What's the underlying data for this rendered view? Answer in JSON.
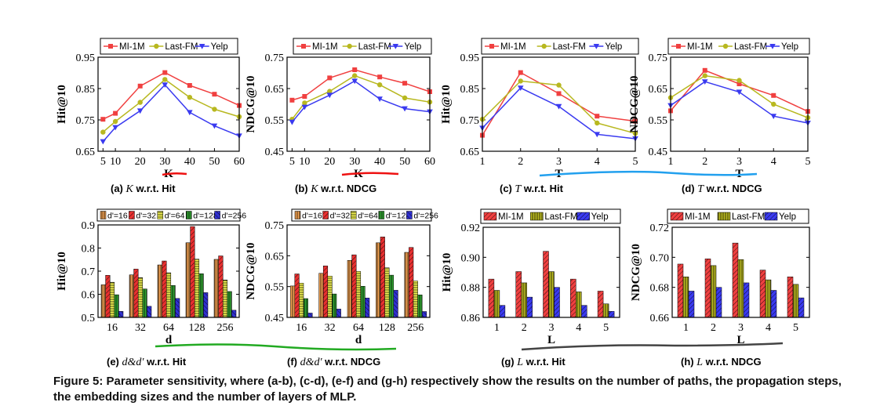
{
  "figure_caption": "Figure 5: Parameter sensitivity, where (a-b), (c-d), (e-f) and (g-h) respectively show the results on the number of paths, the propagation steps, the embedding sizes and the number of layers of MLP.",
  "colors": {
    "mi": "#f04040",
    "lastfm": "#b8b820",
    "yelp": "#3a3af0",
    "d16": "#f0a050",
    "d32": "#e83030",
    "d64": "#f0f050",
    "d128": "#30a030",
    "d256": "#3030d0",
    "underline_red": "#ee1111",
    "underline_blue": "#22a0ee",
    "underline_green": "#22aa22",
    "underline_black": "#444444"
  },
  "chart_data": [
    {
      "id": "a",
      "type": "line",
      "caption_label": "(a)",
      "caption_var": "K",
      "caption_rest": " w.r.t. Hit",
      "xlabel": "K",
      "ylabel": "Hit@10",
      "x": [
        5,
        10,
        20,
        30,
        40,
        50,
        60
      ],
      "xticks": [
        "5",
        "10",
        "20",
        "30",
        "40",
        "50",
        "60"
      ],
      "xlim": [
        3,
        60
      ],
      "ylim": [
        0.65,
        0.95
      ],
      "yticks": [
        "0.65",
        "0.75",
        "0.85",
        "0.95"
      ],
      "legend": [
        "MI-1M",
        "Last-FM",
        "Yelp"
      ],
      "series": [
        {
          "name": "MI-1M",
          "values": [
            0.752,
            0.771,
            0.858,
            0.901,
            0.86,
            0.832,
            0.796
          ]
        },
        {
          "name": "Last-FM",
          "values": [
            0.711,
            0.745,
            0.806,
            0.879,
            0.822,
            0.784,
            0.76
          ]
        },
        {
          "name": "Yelp",
          "values": [
            0.681,
            0.726,
            0.779,
            0.862,
            0.774,
            0.731,
            0.699
          ]
        }
      ]
    },
    {
      "id": "b",
      "type": "line",
      "caption_label": "(b)",
      "caption_var": "K",
      "caption_rest": " w.r.t. NDCG",
      "xlabel": "K",
      "ylabel": "NDCG@10",
      "x": [
        5,
        10,
        20,
        30,
        40,
        50,
        60
      ],
      "xticks": [
        "5",
        "10",
        "20",
        "30",
        "40",
        "50",
        "60"
      ],
      "xlim": [
        3,
        60
      ],
      "ylim": [
        0.45,
        0.75
      ],
      "yticks": [
        "0.45",
        "0.55",
        "0.65",
        "0.75"
      ],
      "legend": [
        "MI-1M",
        "Last-FM",
        "Yelp"
      ],
      "series": [
        {
          "name": "MI-1M",
          "values": [
            0.613,
            0.625,
            0.684,
            0.71,
            0.687,
            0.667,
            0.64
          ]
        },
        {
          "name": "Last-FM",
          "values": [
            0.552,
            0.604,
            0.641,
            0.691,
            0.662,
            0.62,
            0.607
          ]
        },
        {
          "name": "Yelp",
          "values": [
            0.543,
            0.591,
            0.629,
            0.674,
            0.617,
            0.586,
            0.576
          ]
        }
      ]
    },
    {
      "id": "c",
      "type": "line",
      "caption_label": "(c)",
      "caption_var": "T",
      "caption_rest": " w.r.t. Hit",
      "xlabel": "T",
      "ylabel": "Hit@10",
      "x": [
        1,
        2,
        3,
        4,
        5
      ],
      "xticks": [
        "1",
        "2",
        "3",
        "4",
        "5"
      ],
      "xlim": [
        1,
        5
      ],
      "ylim": [
        0.65,
        0.95
      ],
      "yticks": [
        "0.65",
        "0.75",
        "0.85",
        "0.95"
      ],
      "legend": [
        "MI-1M",
        "Last-FM",
        "Yelp"
      ],
      "series": [
        {
          "name": "MI-1M",
          "values": [
            0.701,
            0.901,
            0.834,
            0.762,
            0.746
          ]
        },
        {
          "name": "Last-FM",
          "values": [
            0.752,
            0.874,
            0.861,
            0.74,
            0.707
          ]
        },
        {
          "name": "Yelp",
          "values": [
            0.724,
            0.852,
            0.793,
            0.704,
            0.69
          ]
        }
      ]
    },
    {
      "id": "d",
      "type": "line",
      "caption_label": "(d)",
      "caption_var": "T",
      "caption_rest": " w.r.t. NDCG",
      "xlabel": "T",
      "ylabel": "NDCG@10",
      "x": [
        1,
        2,
        3,
        4,
        5
      ],
      "xticks": [
        "1",
        "2",
        "3",
        "4",
        "5"
      ],
      "xlim": [
        1,
        5
      ],
      "ylim": [
        0.45,
        0.75
      ],
      "yticks": [
        "0.45",
        "0.55",
        "0.65",
        "0.75"
      ],
      "legend": [
        "MI-1M",
        "Last-FM",
        "Yelp"
      ],
      "series": [
        {
          "name": "MI-1M",
          "values": [
            0.579,
            0.708,
            0.665,
            0.628,
            0.577
          ]
        },
        {
          "name": "Last-FM",
          "values": [
            0.621,
            0.691,
            0.676,
            0.6,
            0.557
          ]
        },
        {
          "name": "Yelp",
          "values": [
            0.596,
            0.672,
            0.639,
            0.562,
            0.54
          ]
        }
      ]
    },
    {
      "id": "e",
      "type": "bar",
      "caption_label": "(e)",
      "caption_var": "d&d′",
      "caption_rest": " w.r.t. Hit",
      "xlabel": "d",
      "ylabel": "Hit@10",
      "categories": [
        "16",
        "32",
        "64",
        "128",
        "256"
      ],
      "ylim": [
        0.5,
        0.9
      ],
      "yticks": [
        "0.5",
        "0.6",
        "0.7",
        "0.8",
        "0.9"
      ],
      "legend": [
        "d'=16",
        "d'=32",
        "d'=64",
        "d'=128",
        "d'=256"
      ],
      "series": [
        {
          "name": "d'=16",
          "values": [
            0.641,
            0.684,
            0.727,
            0.823,
            0.751
          ]
        },
        {
          "name": "d'=32",
          "values": [
            0.682,
            0.709,
            0.744,
            0.893,
            0.766
          ]
        },
        {
          "name": "d'=64",
          "values": [
            0.652,
            0.672,
            0.693,
            0.752,
            0.662
          ]
        },
        {
          "name": "d'=128",
          "values": [
            0.598,
            0.623,
            0.638,
            0.689,
            0.612
          ]
        },
        {
          "name": "d'=256",
          "values": [
            0.526,
            0.548,
            0.582,
            0.607,
            0.531
          ]
        }
      ]
    },
    {
      "id": "f",
      "type": "bar",
      "caption_label": "(f)",
      "caption_var": "d&d′",
      "caption_rest": " w.r.t. NDCG",
      "xlabel": "d",
      "ylabel": "NDCG@10",
      "categories": [
        "16",
        "32",
        "64",
        "128",
        "256"
      ],
      "ylim": [
        0.45,
        0.75
      ],
      "yticks": [
        "0.45",
        "0.55",
        "0.65",
        "0.75"
      ],
      "legend": [
        "d'=16",
        "d'=32",
        "d'=64",
        "d'=128",
        "d'=256"
      ],
      "series": [
        {
          "name": "d'=16",
          "values": [
            0.552,
            0.593,
            0.635,
            0.692,
            0.661
          ]
        },
        {
          "name": "d'=32",
          "values": [
            0.591,
            0.617,
            0.653,
            0.711,
            0.677
          ]
        },
        {
          "name": "d'=64",
          "values": [
            0.561,
            0.584,
            0.599,
            0.611,
            0.568
          ]
        },
        {
          "name": "d'=128",
          "values": [
            0.511,
            0.526,
            0.551,
            0.587,
            0.523
          ]
        },
        {
          "name": "d'=256",
          "values": [
            0.464,
            0.477,
            0.513,
            0.538,
            0.469
          ]
        }
      ]
    },
    {
      "id": "g",
      "type": "bar",
      "caption_label": "(g)",
      "caption_var": "L",
      "caption_rest": " w.r.t. Hit",
      "xlabel": "L",
      "ylabel": "Hit@10",
      "categories": [
        "1",
        "2",
        "3",
        "4",
        "5"
      ],
      "ylim": [
        0.86,
        0.92
      ],
      "yticks": [
        "0.86",
        "0.88",
        "0.90",
        "0.92"
      ],
      "legend": [
        "MI-1M",
        "Last-FM",
        "Yelp"
      ],
      "series": [
        {
          "name": "MI-1M",
          "values": [
            0.8855,
            0.8905,
            0.904,
            0.8855,
            0.8775
          ]
        },
        {
          "name": "Last-FM",
          "values": [
            0.878,
            0.883,
            0.8905,
            0.877,
            0.869
          ]
        },
        {
          "name": "Yelp",
          "values": [
            0.868,
            0.8735,
            0.88,
            0.868,
            0.864
          ]
        }
      ]
    },
    {
      "id": "h",
      "type": "bar",
      "caption_label": "(h)",
      "caption_var": "L",
      "caption_rest": " w.r.t. NDCG",
      "xlabel": "L",
      "ylabel": "NDCG@10",
      "categories": [
        "1",
        "2",
        "3",
        "4",
        "5"
      ],
      "ylim": [
        0.66,
        0.72
      ],
      "yticks": [
        "0.66",
        "0.68",
        "0.70",
        "0.72"
      ],
      "legend": [
        "MI-1M",
        "Last-FM",
        "Yelp"
      ],
      "series": [
        {
          "name": "MI-1M",
          "values": [
            0.6955,
            0.699,
            0.7095,
            0.6915,
            0.687
          ]
        },
        {
          "name": "Last-FM",
          "values": [
            0.687,
            0.6945,
            0.6985,
            0.685,
            0.682
          ]
        },
        {
          "name": "Yelp",
          "values": [
            0.6775,
            0.68,
            0.683,
            0.678,
            0.673
          ]
        }
      ]
    }
  ]
}
